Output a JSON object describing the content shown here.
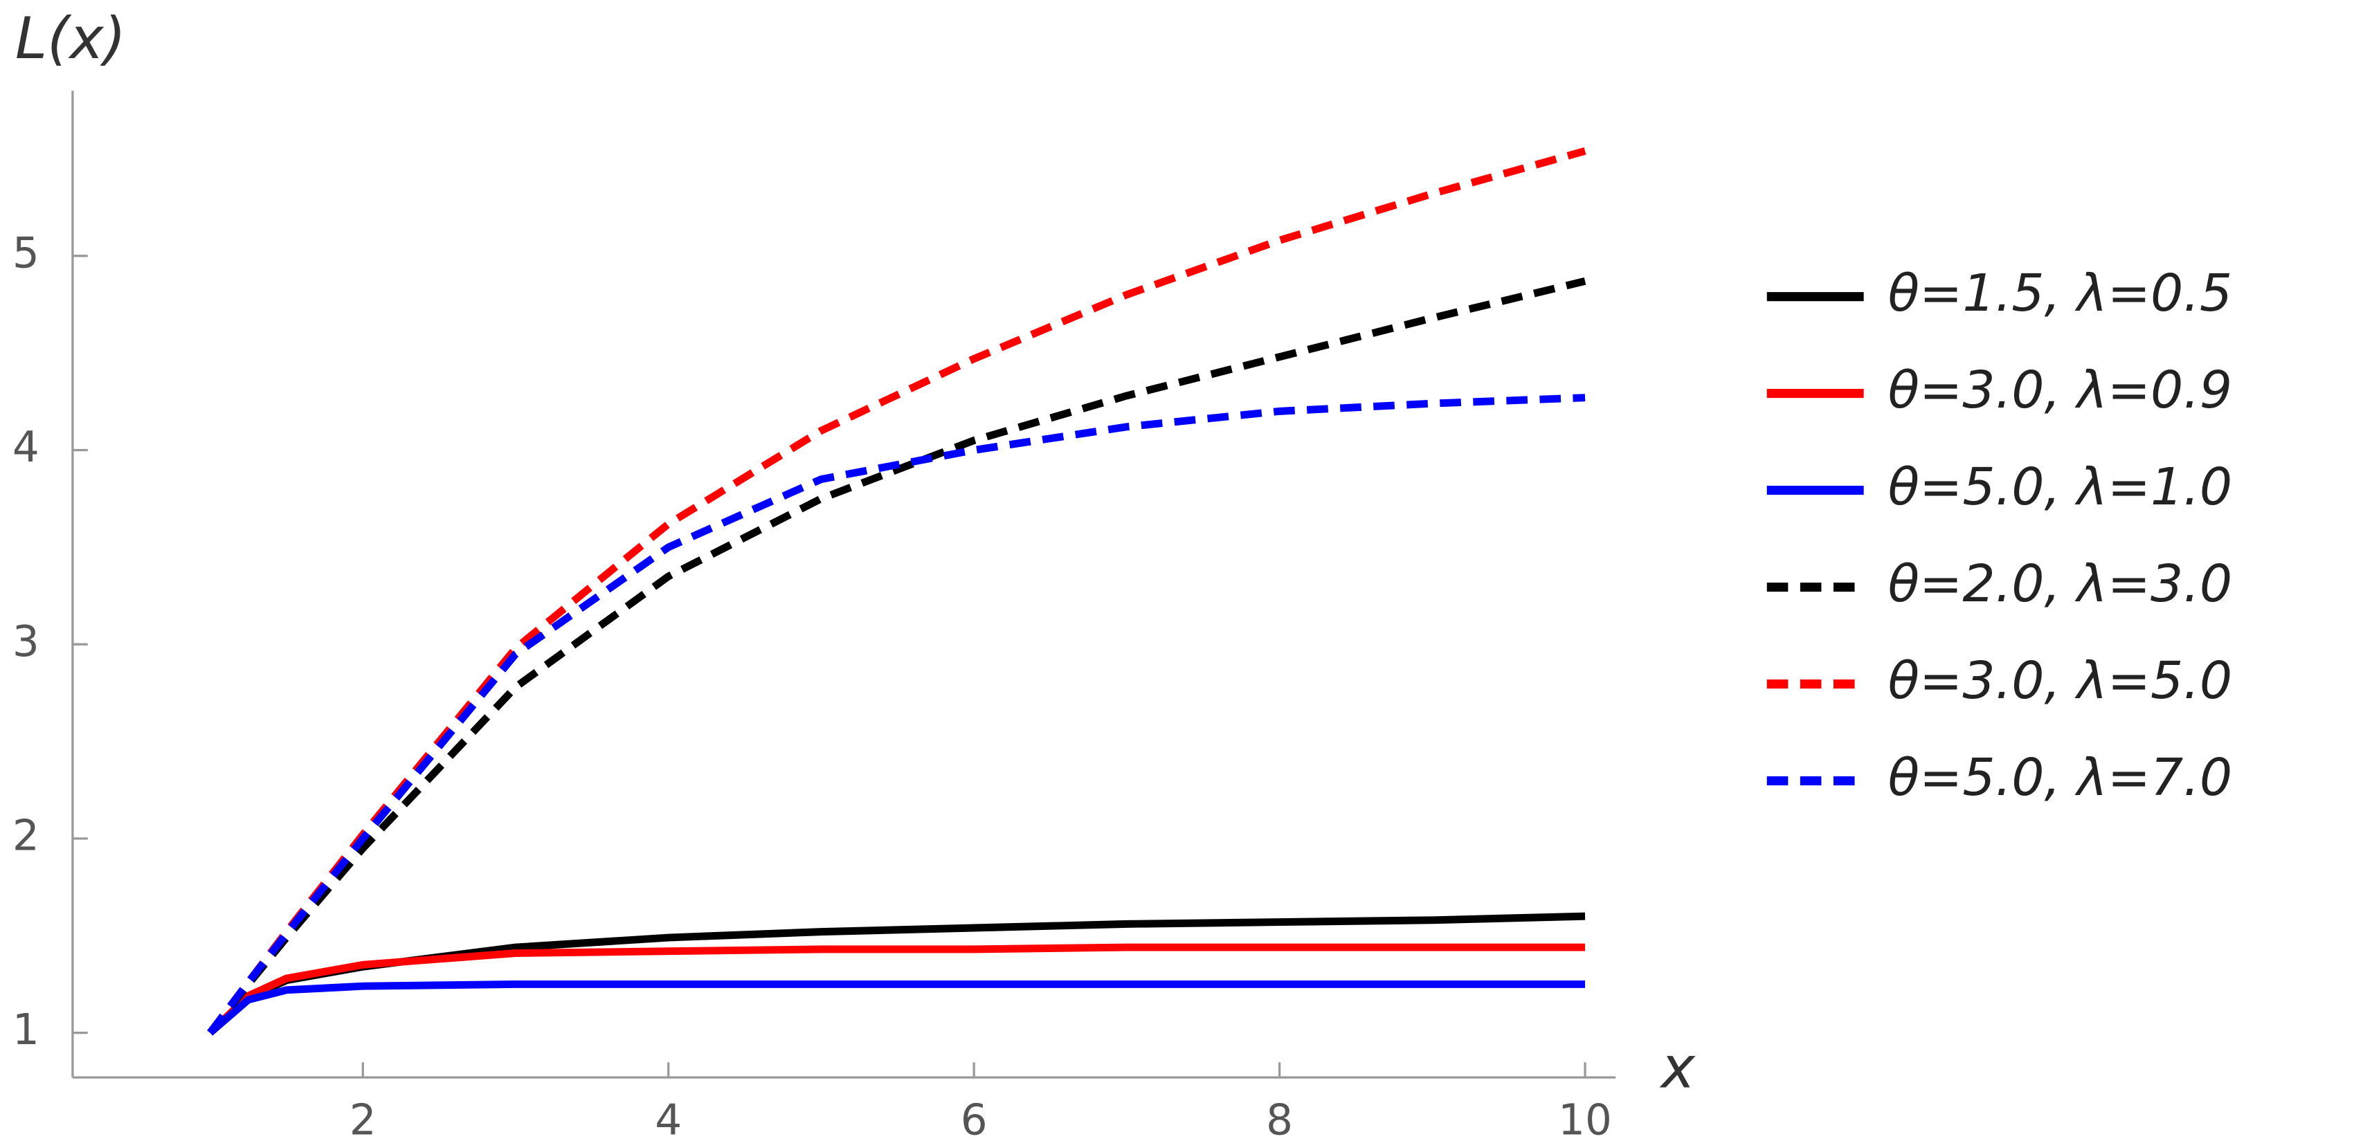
{
  "chart_data": {
    "type": "line",
    "y_label": "L(x)",
    "x_label": "x",
    "xlim": [
      0.1,
      10.2
    ],
    "ylim": [
      0.77,
      5.85
    ],
    "xticks": [
      2,
      4,
      6,
      8,
      10
    ],
    "yticks": [
      1,
      2,
      3,
      4,
      5
    ],
    "x": [
      1,
      1.25,
      1.5,
      2,
      3,
      4,
      5,
      6,
      7,
      8,
      9,
      10
    ],
    "series": [
      {
        "name": "θ=1.5, λ=0.5",
        "color": "#000000",
        "dashed": false,
        "values": [
          1,
          1.18,
          1.27,
          1.34,
          1.44,
          1.49,
          1.52,
          1.54,
          1.56,
          1.57,
          1.58,
          1.6
        ]
      },
      {
        "name": "θ=3.0, λ=0.9",
        "color": "#ff0000",
        "dashed": false,
        "values": [
          1,
          1.19,
          1.28,
          1.35,
          1.41,
          1.42,
          1.43,
          1.43,
          1.44,
          1.44,
          1.44,
          1.44
        ]
      },
      {
        "name": "θ=5.0, λ=1.0",
        "color": "#0000ff",
        "dashed": false,
        "values": [
          1,
          1.17,
          1.22,
          1.24,
          1.25,
          1.25,
          1.25,
          1.25,
          1.25,
          1.25,
          1.25,
          1.25
        ]
      },
      {
        "name": "θ=2.0, λ=3.0",
        "color": "#000000",
        "dashed": true,
        "values": [
          1,
          1.25,
          1.49,
          1.95,
          2.78,
          3.35,
          3.75,
          4.05,
          4.28,
          4.48,
          4.68,
          4.87
        ]
      },
      {
        "name": "θ=3.0, λ=5.0",
        "color": "#ff0000",
        "dashed": true,
        "values": [
          1,
          1.26,
          1.52,
          2.02,
          2.98,
          3.62,
          4.1,
          4.47,
          4.8,
          5.08,
          5.32,
          5.54
        ]
      },
      {
        "name": "θ=5.0, λ=7.0",
        "color": "#0000ff",
        "dashed": true,
        "values": [
          1,
          1.26,
          1.51,
          2.0,
          2.95,
          3.5,
          3.85,
          4.0,
          4.12,
          4.2,
          4.24,
          4.27
        ]
      }
    ]
  }
}
